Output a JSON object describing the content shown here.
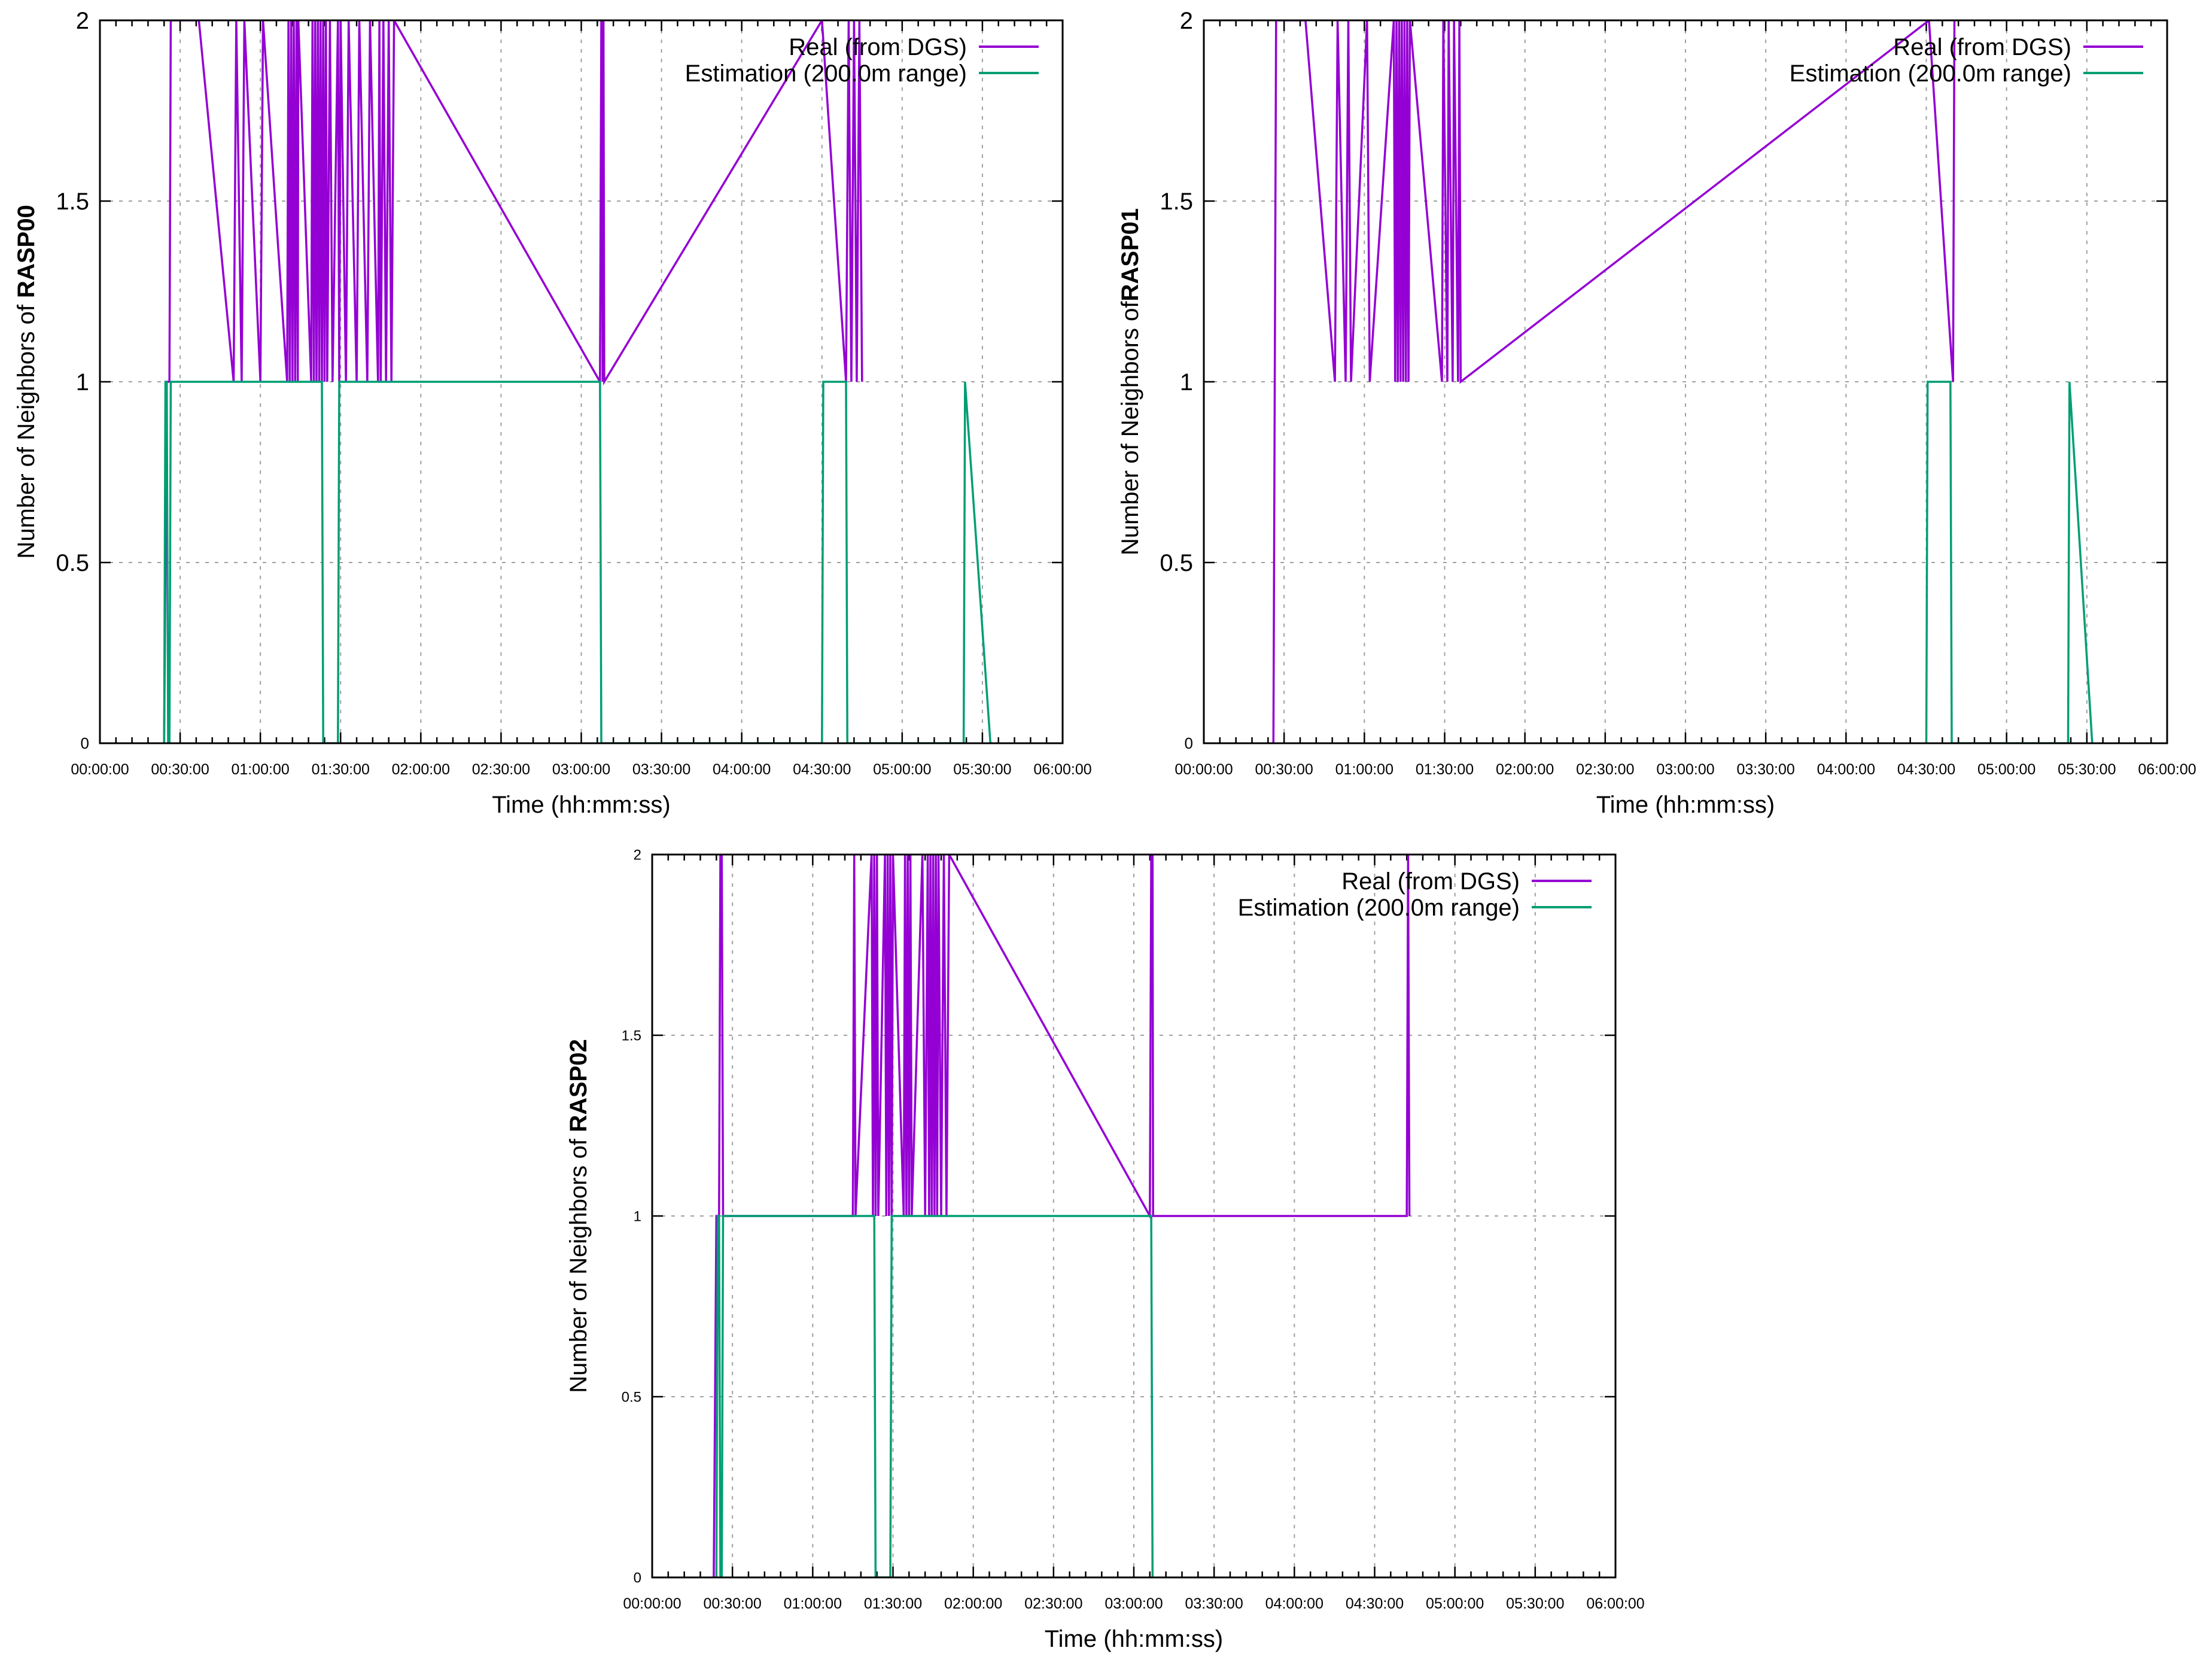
{
  "colors": {
    "real": "#9400d3",
    "estimation": "#009e73",
    "grid": "#a0a0a0",
    "axis": "#000000"
  },
  "chart_data": [
    {
      "type": "line",
      "title": "",
      "xlabel": "Time (hh:mm:ss)",
      "ylabel_prefix": "Number of Neighbors of ",
      "ylabel_bold": "RASP00",
      "xlim": [
        0,
        360
      ],
      "ylim": [
        0,
        2
      ],
      "x_unit": "minutes",
      "yticks": [
        "0",
        "0.5",
        "1",
        "1.5",
        "2"
      ],
      "xticks": [
        "00:00:00",
        "00:30:00",
        "01:00:00",
        "01:30:00",
        "02:00:00",
        "02:30:00",
        "03:00:00",
        "03:30:00",
        "04:00:00",
        "04:30:00",
        "05:00:00",
        "05:30:00",
        "06:00:00"
      ],
      "legend": [
        "Real (from DGS)",
        "Estimation (200.0m range)"
      ],
      "legend_position": "top-right",
      "grid": true,
      "series": [
        {
          "name": "Real (from DGS)",
          "x": [
            24,
            25,
            26,
            26.5,
            27,
            37,
            50,
            51,
            53,
            54,
            60,
            61,
            70,
            70.5,
            71,
            71.5,
            72,
            72.5,
            73,
            73.5,
            74,
            74.2,
            79,
            79.5,
            80,
            80.5,
            81,
            81.5,
            82,
            82.5,
            83,
            83.5,
            84,
            84.5,
            85,
            86,
            87,
            89,
            89.5,
            90,
            92,
            93,
            96,
            97,
            100,
            101,
            104,
            104.5,
            105,
            106,
            107,
            108,
            109,
            110,
            187,
            187.5,
            188,
            188.3,
            188.6,
            270,
            279,
            280,
            281,
            282,
            283,
            284,
            285
          ],
          "y": [
            0,
            1,
            1,
            2,
            2,
            2,
            1,
            2,
            1,
            2,
            1,
            2,
            1,
            2,
            1,
            2,
            1,
            2,
            1,
            2,
            1,
            2,
            1,
            2,
            1,
            2,
            1,
            2,
            1,
            2,
            1,
            2,
            1,
            2,
            1,
            2,
            1,
            2,
            1,
            2,
            1,
            2,
            1,
            2,
            1,
            2,
            1,
            2,
            1,
            2,
            1,
            2,
            1,
            2,
            1,
            2,
            1,
            2,
            1,
            2,
            1,
            2,
            1,
            2,
            1,
            2,
            1
          ]
        },
        {
          "name": "Estimation (200.0m range)",
          "x": [
            24,
            24.5,
            25,
            25.5,
            26,
            26.5,
            83,
            83.5,
            89,
            89.5,
            187,
            187.5,
            270,
            270.5,
            279,
            279.5,
            323,
            323.5,
            333,
            333.5
          ],
          "y": [
            0,
            1,
            1,
            0,
            0,
            1,
            1,
            0,
            0,
            1,
            1,
            0,
            0,
            1,
            1,
            0,
            0,
            1,
            0,
            0
          ]
        }
      ]
    },
    {
      "type": "line",
      "title": "",
      "xlabel": "Time (hh:mm:ss)",
      "ylabel_prefix": "Number of Neighbors of",
      "ylabel_bold": "RASP01",
      "xlim": [
        0,
        360
      ],
      "ylim": [
        0,
        2
      ],
      "x_unit": "minutes",
      "yticks": [
        "0",
        "0.5",
        "1",
        "1.5",
        "2"
      ],
      "xticks": [
        "00:00:00",
        "00:30:00",
        "01:00:00",
        "01:30:00",
        "02:00:00",
        "02:30:00",
        "03:00:00",
        "03:30:00",
        "04:00:00",
        "04:30:00",
        "05:00:00",
        "05:30:00",
        "06:00:00"
      ],
      "legend": [
        "Real (from DGS)",
        "Estimation (200.0m range)"
      ],
      "legend_position": "top-right",
      "grid": true,
      "series": [
        {
          "name": "Real (from DGS)",
          "x": [
            26,
            27,
            27.5,
            38,
            49,
            50,
            53,
            54,
            55,
            61,
            62,
            71,
            71.5,
            72,
            72.5,
            73,
            73.5,
            74,
            74.5,
            75,
            75.5,
            76,
            76.5,
            77,
            89,
            89.5,
            91,
            91.5,
            93,
            93.5,
            95,
            95.5,
            96,
            271,
            280,
            280.5
          ],
          "y": [
            0,
            2,
            2,
            2,
            1,
            2,
            1,
            2,
            1,
            2,
            1,
            2,
            1,
            2,
            1,
            2,
            1,
            2,
            1,
            2,
            1,
            2,
            1,
            2,
            1,
            2,
            1,
            2,
            1,
            2,
            1,
            2,
            1,
            2,
            1,
            2
          ]
        },
        {
          "name": "Estimation (200.0m range)",
          "x": [
            270,
            270.5,
            279,
            279.5,
            323,
            323.5,
            332,
            332.5
          ],
          "y": [
            0,
            1,
            1,
            0,
            0,
            1,
            0,
            0
          ]
        }
      ]
    },
    {
      "type": "line",
      "title": "",
      "xlabel": "Time (hh:mm:ss)",
      "ylabel_prefix": "Number of Neighbors of ",
      "ylabel_bold": "RASP02",
      "xlim": [
        0,
        360
      ],
      "ylim": [
        0,
        2
      ],
      "x_unit": "minutes",
      "yticks": [
        "0",
        "0.5",
        "1",
        "1.5",
        "2"
      ],
      "xticks": [
        "00:00:00",
        "00:30:00",
        "01:00:00",
        "01:30:00",
        "02:00:00",
        "02:30:00",
        "03:00:00",
        "03:30:00",
        "04:00:00",
        "04:30:00",
        "05:00:00",
        "05:30:00",
        "06:00:00"
      ],
      "legend": [
        "Real (from DGS)",
        "Estimation (200.0m range)"
      ],
      "legend_position": "top-right",
      "grid": true,
      "series": [
        {
          "name": "Real (from DGS)",
          "x": [
            23,
            24,
            25,
            25.5,
            26,
            26.5,
            75,
            75.5,
            76,
            82,
            82.5,
            83,
            83.5,
            84,
            84.5,
            87,
            87.5,
            88,
            88.5,
            89,
            89.5,
            90,
            94,
            94.5,
            95,
            95.5,
            96,
            96.5,
            97,
            101,
            102,
            103,
            103.5,
            104,
            104.5,
            105,
            105.5,
            106,
            106.5,
            107,
            108,
            109,
            110,
            111,
            186,
            186.5,
            187,
            187.2,
            282,
            282.5,
            283
          ],
          "y": [
            0,
            1,
            1,
            2,
            2,
            1,
            1,
            2,
            1,
            2,
            1,
            2,
            1,
            2,
            1,
            2,
            1,
            2,
            1,
            2,
            1,
            2,
            1,
            2,
            1,
            2,
            1,
            2,
            1,
            2,
            1,
            2,
            1,
            2,
            1,
            2,
            1,
            2,
            1,
            2,
            1,
            2,
            1,
            2,
            1,
            2,
            2,
            1,
            1,
            2,
            1
          ]
        },
        {
          "name": "Estimation (200.0m range)",
          "x": [
            24,
            24.5,
            25,
            25.5,
            26,
            26.5,
            83,
            83.5,
            89,
            89.5,
            186.5,
            187
          ],
          "y": [
            0,
            1,
            1,
            0,
            0,
            1,
            1,
            0,
            0,
            1,
            1,
            0
          ]
        }
      ]
    }
  ]
}
